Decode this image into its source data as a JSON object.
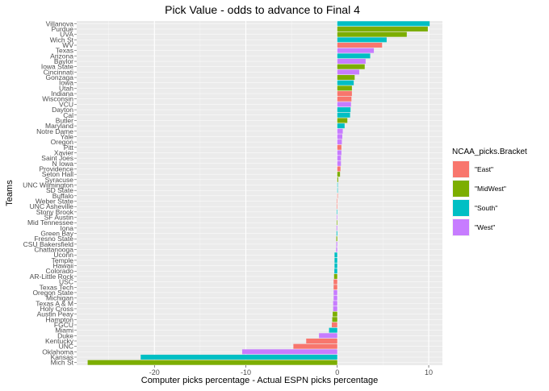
{
  "chart_data": {
    "type": "bar",
    "orientation": "horizontal",
    "title": "Pick Value - odds to advance to Final 4",
    "xlabel": "Computer picks percentage - Actual ESPN picks percentage",
    "ylabel": "Teams",
    "xlim": [
      -28.5,
      11.5
    ],
    "xticks": [
      -20,
      -10,
      0,
      10
    ],
    "grid": true,
    "legend_title": "NCAA_picks.Bracket",
    "legend_position": "right",
    "series_colors": {
      "\"East\"": "#F8766D",
      "\"MidWest\"": "#7CAE00",
      "\"South\"": "#00BFC4",
      "\"West\"": "#C77CFF"
    },
    "legend": [
      "\"East\"",
      "\"MidWest\"",
      "\"South\"",
      "\"West\""
    ],
    "bars": [
      {
        "team": "Villanova",
        "bracket": "\"South\"",
        "value": 10.1
      },
      {
        "team": "Purdue",
        "bracket": "\"MidWest\"",
        "value": 9.9
      },
      {
        "team": "UVA",
        "bracket": "\"MidWest\"",
        "value": 7.6
      },
      {
        "team": "Wich St",
        "bracket": "\"South\"",
        "value": 5.4
      },
      {
        "team": "WV",
        "bracket": "\"East\"",
        "value": 4.9
      },
      {
        "team": "Texas",
        "bracket": "\"West\"",
        "value": 4.0
      },
      {
        "team": "Arizona",
        "bracket": "\"South\"",
        "value": 3.6
      },
      {
        "team": "Baylor",
        "bracket": "\"West\"",
        "value": 3.1
      },
      {
        "team": "Iowa State",
        "bracket": "\"MidWest\"",
        "value": 3.0
      },
      {
        "team": "Cincinnati",
        "bracket": "\"West\"",
        "value": 2.4
      },
      {
        "team": "Gonzaga",
        "bracket": "\"MidWest\"",
        "value": 1.9
      },
      {
        "team": "Iowa",
        "bracket": "\"South\"",
        "value": 1.8
      },
      {
        "team": "Utah",
        "bracket": "\"MidWest\"",
        "value": 1.6
      },
      {
        "team": "Indiana",
        "bracket": "\"East\"",
        "value": 1.6
      },
      {
        "team": "Wisconsin",
        "bracket": "\"East\"",
        "value": 1.55
      },
      {
        "team": "VCU",
        "bracket": "\"West\"",
        "value": 1.5
      },
      {
        "team": "Dayton",
        "bracket": "\"South\"",
        "value": 1.45
      },
      {
        "team": "Cal",
        "bracket": "\"South\"",
        "value": 1.4
      },
      {
        "team": "Butler",
        "bracket": "\"MidWest\"",
        "value": 1.1
      },
      {
        "team": "Maryland",
        "bracket": "\"South\"",
        "value": 0.8
      },
      {
        "team": "Notre Dame",
        "bracket": "\"West\"",
        "value": 0.6
      },
      {
        "team": "Yale",
        "bracket": "\"West\"",
        "value": 0.55
      },
      {
        "team": "Oregon",
        "bracket": "\"West\"",
        "value": 0.5
      },
      {
        "team": "Pitt",
        "bracket": "\"East\"",
        "value": 0.45
      },
      {
        "team": "Xavier",
        "bracket": "\"West\"",
        "value": 0.45
      },
      {
        "team": "Saint Joes",
        "bracket": "\"West\"",
        "value": 0.4
      },
      {
        "team": "N Iowa",
        "bracket": "\"West\"",
        "value": 0.4
      },
      {
        "team": "Providence",
        "bracket": "\"East\"",
        "value": 0.35
      },
      {
        "team": "Seton Hall",
        "bracket": "\"MidWest\"",
        "value": 0.3
      },
      {
        "team": "Syracuse",
        "bracket": "\"MidWest\"",
        "value": 0.1
      },
      {
        "team": "UNC Wilmington",
        "bracket": "\"South\"",
        "value": 0.05
      },
      {
        "team": "SD State",
        "bracket": "\"South\"",
        "value": 0.03
      },
      {
        "team": "Buffalo",
        "bracket": "\"East\"",
        "value": 0.02
      },
      {
        "team": "Weber State",
        "bracket": "\"East\"",
        "value": -0.05
      },
      {
        "team": "UNC Asheville",
        "bracket": "\"East\"",
        "value": -0.05
      },
      {
        "team": "Stony Brook",
        "bracket": "\"South\"",
        "value": -0.05
      },
      {
        "team": "SF Austin",
        "bracket": "\"West\"",
        "value": -0.06
      },
      {
        "team": "Mid Tennessee",
        "bracket": "\"MidWest\"",
        "value": -0.06
      },
      {
        "team": "Iona",
        "bracket": "\"West\"",
        "value": -0.08
      },
      {
        "team": "Green Bay",
        "bracket": "\"South\"",
        "value": -0.08
      },
      {
        "team": "Fresno State",
        "bracket": "\"MidWest\"",
        "value": -0.1
      },
      {
        "team": "CSU Bakersfield",
        "bracket": "\"West\"",
        "value": -0.1
      },
      {
        "team": "Chattanooga",
        "bracket": "\"West\"",
        "value": -0.12
      },
      {
        "team": "Uconn",
        "bracket": "\"South\"",
        "value": -0.3
      },
      {
        "team": "Temple",
        "bracket": "\"South\"",
        "value": -0.3
      },
      {
        "team": "Hawaii",
        "bracket": "\"South\"",
        "value": -0.3
      },
      {
        "team": "Colorado",
        "bracket": "\"South\"",
        "value": -0.32
      },
      {
        "team": "AR-Little Rock",
        "bracket": "\"MidWest\"",
        "value": -0.35
      },
      {
        "team": "USC",
        "bracket": "\"East\"",
        "value": -0.4
      },
      {
        "team": "Texas Tech",
        "bracket": "\"East\"",
        "value": -0.4
      },
      {
        "team": "Oregon State",
        "bracket": "\"West\"",
        "value": -0.4
      },
      {
        "team": "Michigan",
        "bracket": "\"West\"",
        "value": -0.4
      },
      {
        "team": "Texas A & M",
        "bracket": "\"West\"",
        "value": -0.45
      },
      {
        "team": "Holy Cross",
        "bracket": "\"West\"",
        "value": -0.45
      },
      {
        "team": "Austin Peay",
        "bracket": "\"MidWest\"",
        "value": -0.5
      },
      {
        "team": "Hampton",
        "bracket": "\"MidWest\"",
        "value": -0.55
      },
      {
        "team": "FGCU",
        "bracket": "\"East\"",
        "value": -0.6
      },
      {
        "team": "Miami",
        "bracket": "\"South\"",
        "value": -0.9
      },
      {
        "team": "Duke",
        "bracket": "\"West\"",
        "value": -2.0
      },
      {
        "team": "Kentucky",
        "bracket": "\"East\"",
        "value": -3.4
      },
      {
        "team": "UNC",
        "bracket": "\"East\"",
        "value": -4.8
      },
      {
        "team": "Oklahoma",
        "bracket": "\"West\"",
        "value": -10.4
      },
      {
        "team": "Kansas",
        "bracket": "\"South\"",
        "value": -21.5
      },
      {
        "team": "Mich St",
        "bracket": "\"MidWest\"",
        "value": -27.3
      }
    ]
  }
}
